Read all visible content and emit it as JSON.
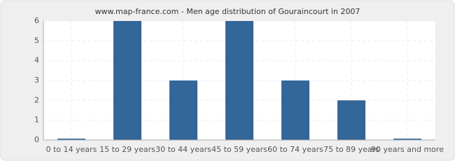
{
  "chart_data": {
    "type": "bar",
    "title": "www.map-france.com - Men age distribution of Gouraincourt in 2007",
    "categories": [
      "0 to 14 years",
      "15 to 29 years",
      "30 to 44 years",
      "45 to 59 years",
      "60 to 74 years",
      "75 to 89 years",
      "90 years and more"
    ],
    "values": [
      0,
      6,
      3,
      6,
      3,
      2,
      0
    ],
    "color": "#336699",
    "ylim": [
      0,
      6
    ],
    "yticks": [
      0,
      1,
      2,
      3,
      4,
      5,
      6
    ],
    "grid": true
  }
}
